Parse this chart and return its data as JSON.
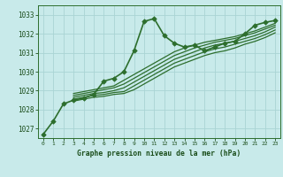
{
  "title": "Graphe pression niveau de la mer (hPa)",
  "background_color": "#c8eaea",
  "grid_color": "#aad4d4",
  "line_color": "#2d6e2d",
  "text_color": "#1a4d1a",
  "xlim": [
    -0.5,
    23.5
  ],
  "ylim": [
    1026.5,
    1033.5
  ],
  "yticks": [
    1027,
    1028,
    1029,
    1030,
    1031,
    1032,
    1033
  ],
  "xticks": [
    0,
    1,
    2,
    3,
    4,
    5,
    6,
    7,
    8,
    9,
    10,
    11,
    12,
    13,
    14,
    15,
    16,
    17,
    18,
    19,
    20,
    21,
    22,
    23
  ],
  "series": [
    {
      "x": [
        0,
        1,
        2,
        3,
        4,
        5,
        6,
        7,
        8,
        9,
        10,
        11,
        12,
        13,
        14,
        15,
        16,
        17,
        18,
        19,
        20,
        21,
        22,
        23
      ],
      "y": [
        1026.7,
        1027.4,
        1028.3,
        1028.5,
        1028.6,
        1028.8,
        1029.5,
        1029.65,
        1030.0,
        1031.1,
        1032.65,
        1032.8,
        1031.9,
        1031.5,
        1031.3,
        1031.4,
        1031.1,
        1031.3,
        1031.5,
        1031.6,
        1032.0,
        1032.45,
        1032.6,
        1032.7
      ],
      "marker": "D",
      "markersize": 2.8,
      "linewidth": 1.2,
      "has_marker": true
    },
    {
      "x": [
        3,
        4,
        5,
        6,
        7,
        8,
        9,
        10,
        11,
        12,
        13,
        14,
        15,
        16,
        17,
        18,
        19,
        20,
        21,
        22,
        23
      ],
      "y": [
        1028.85,
        1028.95,
        1029.05,
        1029.15,
        1029.25,
        1029.55,
        1029.85,
        1030.15,
        1030.45,
        1030.75,
        1031.05,
        1031.25,
        1031.4,
        1031.55,
        1031.65,
        1031.75,
        1031.85,
        1032.0,
        1032.15,
        1032.35,
        1032.55
      ],
      "has_marker": false,
      "linewidth": 0.9
    },
    {
      "x": [
        3,
        4,
        5,
        6,
        7,
        8,
        9,
        10,
        11,
        12,
        13,
        14,
        15,
        16,
        17,
        18,
        19,
        20,
        21,
        22,
        23
      ],
      "y": [
        1028.75,
        1028.85,
        1028.95,
        1029.05,
        1029.15,
        1029.35,
        1029.65,
        1029.95,
        1030.25,
        1030.55,
        1030.85,
        1031.05,
        1031.25,
        1031.4,
        1031.55,
        1031.65,
        1031.75,
        1031.9,
        1032.05,
        1032.25,
        1032.45
      ],
      "has_marker": false,
      "linewidth": 0.9
    },
    {
      "x": [
        3,
        4,
        5,
        6,
        7,
        8,
        9,
        10,
        11,
        12,
        13,
        14,
        15,
        16,
        17,
        18,
        19,
        20,
        21,
        22,
        23
      ],
      "y": [
        1028.65,
        1028.75,
        1028.85,
        1028.9,
        1029.0,
        1029.15,
        1029.45,
        1029.75,
        1030.05,
        1030.35,
        1030.65,
        1030.85,
        1031.05,
        1031.25,
        1031.4,
        1031.5,
        1031.6,
        1031.75,
        1031.9,
        1032.1,
        1032.35
      ],
      "has_marker": false,
      "linewidth": 0.9
    },
    {
      "x": [
        3,
        4,
        5,
        6,
        7,
        8,
        9,
        10,
        11,
        12,
        13,
        14,
        15,
        16,
        17,
        18,
        19,
        20,
        21,
        22,
        23
      ],
      "y": [
        1028.55,
        1028.65,
        1028.75,
        1028.8,
        1028.9,
        1028.95,
        1029.25,
        1029.55,
        1029.85,
        1030.15,
        1030.45,
        1030.65,
        1030.85,
        1031.05,
        1031.2,
        1031.3,
        1031.45,
        1031.6,
        1031.75,
        1031.95,
        1032.2
      ],
      "has_marker": false,
      "linewidth": 0.9
    },
    {
      "x": [
        3,
        4,
        5,
        6,
        7,
        8,
        9,
        10,
        11,
        12,
        13,
        14,
        15,
        16,
        17,
        18,
        19,
        20,
        21,
        22,
        23
      ],
      "y": [
        1028.45,
        1028.55,
        1028.65,
        1028.7,
        1028.8,
        1028.85,
        1029.05,
        1029.35,
        1029.65,
        1029.95,
        1030.25,
        1030.45,
        1030.65,
        1030.85,
        1031.0,
        1031.1,
        1031.25,
        1031.45,
        1031.6,
        1031.8,
        1032.05
      ],
      "has_marker": false,
      "linewidth": 0.9
    }
  ]
}
